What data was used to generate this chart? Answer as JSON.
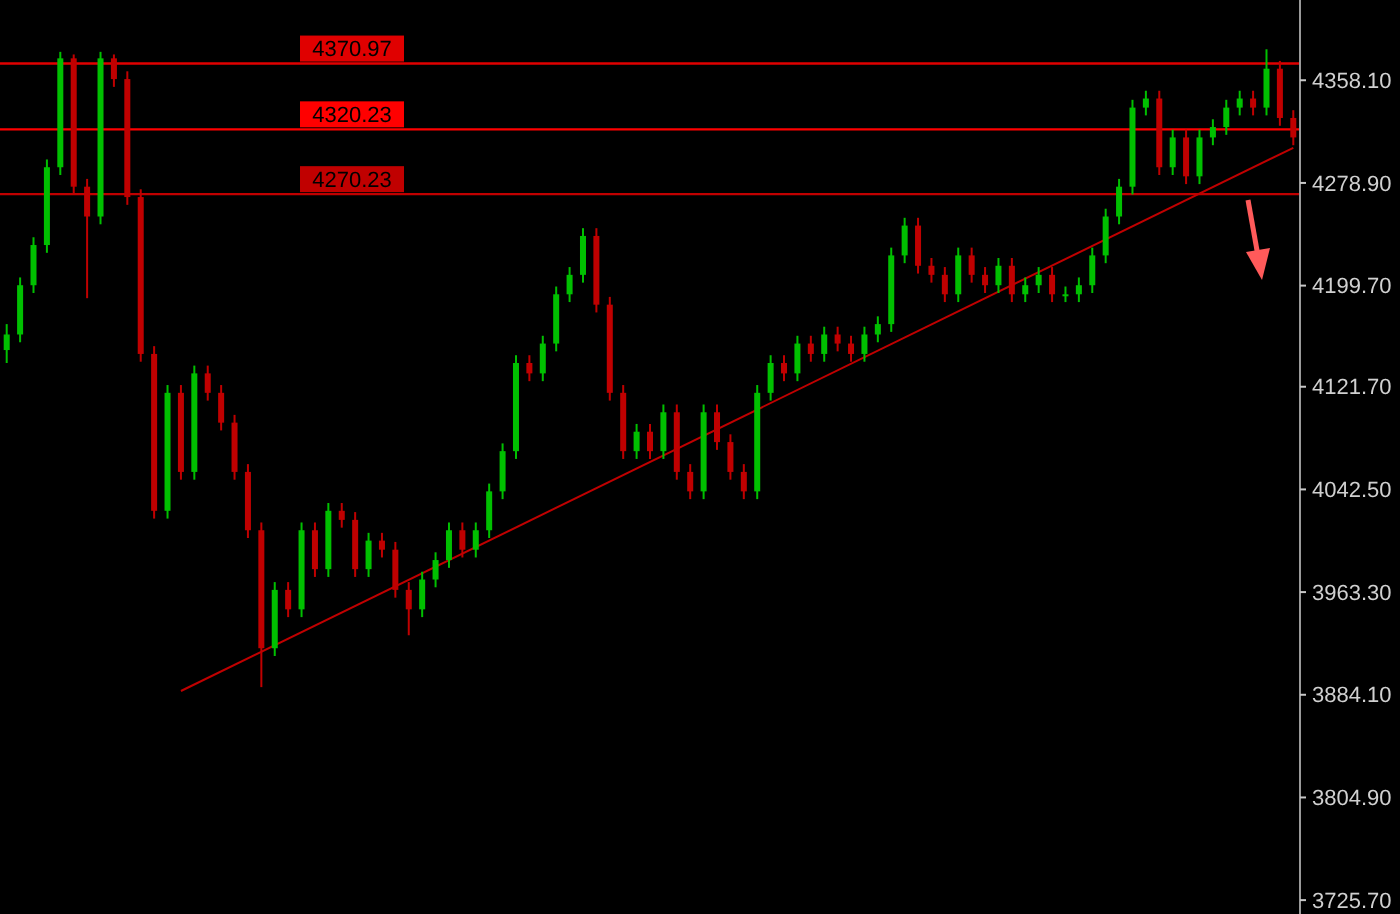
{
  "chart_data": {
    "type": "candlestick",
    "categories": [
      null,
      null,
      null,
      null,
      null,
      null,
      null,
      null,
      null,
      null,
      null,
      null,
      null,
      null,
      null,
      null,
      null,
      null,
      null,
      null,
      null,
      null,
      null,
      null,
      null,
      null,
      null,
      null,
      null,
      null,
      null,
      null,
      null,
      null,
      null,
      null,
      null,
      null,
      null,
      null,
      null,
      null,
      null,
      null,
      null,
      null,
      null,
      null,
      null,
      null,
      null,
      null,
      null,
      null,
      null,
      null,
      null,
      null,
      null,
      null,
      null,
      null,
      null,
      null,
      null,
      null,
      null,
      null,
      null,
      null,
      null,
      null,
      null,
      null,
      null,
      null,
      null,
      null,
      null,
      null,
      null,
      null,
      null,
      null,
      null,
      null,
      null,
      null,
      null,
      null,
      null,
      null,
      null,
      null,
      null,
      null,
      null
    ],
    "ohlc": [
      [
        4150,
        4170,
        4140,
        4162
      ],
      [
        4162,
        4206,
        4156,
        4200
      ],
      [
        4200,
        4237,
        4194,
        4231
      ],
      [
        4231,
        4297,
        4225,
        4291
      ],
      [
        4291,
        4380,
        4285,
        4375
      ],
      [
        4375,
        4378,
        4270,
        4276
      ],
      [
        4276,
        4282,
        4190,
        4253
      ],
      [
        4253,
        4380,
        4247,
        4375
      ],
      [
        4375,
        4378,
        4353,
        4359
      ],
      [
        4359,
        4365,
        4262,
        4268
      ],
      [
        4268,
        4274,
        4141,
        4147
      ],
      [
        4147,
        4153,
        4020,
        4026
      ],
      [
        4026,
        4123,
        4020,
        4117
      ],
      [
        4117,
        4123,
        4050,
        4056
      ],
      [
        4056,
        4138,
        4050,
        4132
      ],
      [
        4132,
        4138,
        4111,
        4117
      ],
      [
        4117,
        4123,
        4088,
        4094
      ],
      [
        4094,
        4100,
        4050,
        4056
      ],
      [
        4056,
        4062,
        4005,
        4011
      ],
      [
        4011,
        4017,
        3890,
        3920
      ],
      [
        3920,
        3971,
        3914,
        3965
      ],
      [
        3965,
        3971,
        3944,
        3950
      ],
      [
        3950,
        4017,
        3944,
        4011
      ],
      [
        4011,
        4017,
        3975,
        3981
      ],
      [
        3981,
        4032,
        3975,
        4026
      ],
      [
        4026,
        4032,
        4013,
        4019
      ],
      [
        4019,
        4025,
        3975,
        3981
      ],
      [
        3981,
        4009,
        3975,
        4003
      ],
      [
        4003,
        4009,
        3990,
        3996
      ],
      [
        3996,
        4002,
        3959,
        3965
      ],
      [
        3965,
        3971,
        3930,
        3950
      ],
      [
        3950,
        3979,
        3944,
        3973
      ],
      [
        3973,
        3994,
        3967,
        3988
      ],
      [
        3988,
        4017,
        3982,
        4011
      ],
      [
        4011,
        4017,
        3990,
        3996
      ],
      [
        3996,
        4017,
        3990,
        4011
      ],
      [
        4011,
        4047,
        4005,
        4041
      ],
      [
        4041,
        4078,
        4035,
        4072
      ],
      [
        4072,
        4146,
        4066,
        4140
      ],
      [
        4140,
        4146,
        4126,
        4132
      ],
      [
        4132,
        4161,
        4126,
        4155
      ],
      [
        4155,
        4199,
        4149,
        4193
      ],
      [
        4193,
        4214,
        4187,
        4208
      ],
      [
        4208,
        4244,
        4202,
        4238
      ],
      [
        4238,
        4244,
        4179,
        4185
      ],
      [
        4185,
        4191,
        4111,
        4117
      ],
      [
        4117,
        4123,
        4066,
        4072
      ],
      [
        4072,
        4093,
        4066,
        4087
      ],
      [
        4087,
        4093,
        4066,
        4072
      ],
      [
        4072,
        4108,
        4066,
        4102
      ],
      [
        4102,
        4108,
        4050,
        4056
      ],
      [
        4056,
        4062,
        4035,
        4041
      ],
      [
        4041,
        4108,
        4035,
        4102
      ],
      [
        4102,
        4108,
        4073,
        4079
      ],
      [
        4079,
        4085,
        4050,
        4056
      ],
      [
        4056,
        4062,
        4035,
        4041
      ],
      [
        4041,
        4123,
        4035,
        4117
      ],
      [
        4117,
        4146,
        4111,
        4140
      ],
      [
        4140,
        4146,
        4126,
        4132
      ],
      [
        4132,
        4161,
        4126,
        4155
      ],
      [
        4155,
        4161,
        4141,
        4147
      ],
      [
        4147,
        4168,
        4141,
        4162
      ],
      [
        4162,
        4168,
        4149,
        4155
      ],
      [
        4155,
        4161,
        4141,
        4147
      ],
      [
        4147,
        4168,
        4141,
        4162
      ],
      [
        4162,
        4176,
        4156,
        4170
      ],
      [
        4170,
        4229,
        4164,
        4223
      ],
      [
        4223,
        4252,
        4217,
        4246
      ],
      [
        4246,
        4252,
        4209,
        4215
      ],
      [
        4215,
        4221,
        4202,
        4208
      ],
      [
        4208,
        4214,
        4187,
        4193
      ],
      [
        4193,
        4229,
        4187,
        4223
      ],
      [
        4223,
        4229,
        4202,
        4208
      ],
      [
        4208,
        4214,
        4194,
        4200
      ],
      [
        4200,
        4221,
        4194,
        4215
      ],
      [
        4215,
        4221,
        4187,
        4193
      ],
      [
        4193,
        4206,
        4187,
        4200
      ],
      [
        4200,
        4214,
        4194,
        4208
      ],
      [
        4208,
        4214,
        4187,
        4193
      ],
      [
        4193,
        4199,
        4187,
        4193
      ],
      [
        4193,
        4206,
        4187,
        4200
      ],
      [
        4200,
        4229,
        4194,
        4223
      ],
      [
        4223,
        4259,
        4217,
        4253
      ],
      [
        4253,
        4282,
        4247,
        4276
      ],
      [
        4276,
        4343,
        4270,
        4337
      ],
      [
        4337,
        4350,
        4331,
        4344
      ],
      [
        4344,
        4350,
        4285,
        4291
      ],
      [
        4291,
        4320,
        4285,
        4314
      ],
      [
        4314,
        4320,
        4278,
        4284
      ],
      [
        4284,
        4320,
        4278,
        4314
      ],
      [
        4314,
        4328,
        4308,
        4322
      ],
      [
        4322,
        4343,
        4316,
        4337
      ],
      [
        4337,
        4350,
        4331,
        4344
      ],
      [
        4344,
        4350,
        4331,
        4337
      ],
      [
        4337,
        4382,
        4331,
        4367
      ],
      [
        4367,
        4373,
        4323,
        4329
      ],
      [
        4329,
        4335,
        4308,
        4314
      ]
    ],
    "colors": [
      "#00c000",
      "#00c000",
      "#00c000",
      "#00c000",
      "#00c000",
      "#c00000",
      "#c00000",
      "#00c000",
      "#c00000",
      "#c00000",
      "#c00000",
      "#c00000",
      "#00c000",
      "#c00000",
      "#00c000",
      "#c00000",
      "#c00000",
      "#c00000",
      "#c00000",
      "#c00000",
      "#00c000",
      "#c00000",
      "#00c000",
      "#c00000",
      "#00c000",
      "#c00000",
      "#c00000",
      "#00c000",
      "#c00000",
      "#c00000",
      "#c00000",
      "#00c000",
      "#00c000",
      "#00c000",
      "#c00000",
      "#00c000",
      "#00c000",
      "#00c000",
      "#00c000",
      "#c00000",
      "#00c000",
      "#00c000",
      "#00c000",
      "#00c000",
      "#c00000",
      "#c00000",
      "#c00000",
      "#00c000",
      "#c00000",
      "#00c000",
      "#c00000",
      "#c00000",
      "#00c000",
      "#c00000",
      "#c00000",
      "#c00000",
      "#00c000",
      "#00c000",
      "#c00000",
      "#00c000",
      "#c00000",
      "#00c000",
      "#c00000",
      "#c00000",
      "#00c000",
      "#00c000",
      "#00c000",
      "#00c000",
      "#c00000",
      "#c00000",
      "#c00000",
      "#00c000",
      "#c00000",
      "#c00000",
      "#00c000",
      "#c00000",
      "#00c000",
      "#00c000",
      "#c00000",
      "#00c000",
      "#00c000",
      "#00c000",
      "#00c000",
      "#00c000",
      "#00c000",
      "#00c000",
      "#c00000",
      "#00c000",
      "#c00000",
      "#00c000",
      "#00c000",
      "#00c000",
      "#00c000",
      "#c00000",
      "#00c000",
      "#c00000",
      "#c00000"
    ],
    "series": [
      {
        "type": "line",
        "color": "#c00000",
        "values": [
          null,
          null,
          null,
          null,
          null,
          null,
          null,
          null,
          null,
          null,
          null,
          null,
          null,
          3887,
          null,
          null,
          null,
          null,
          null,
          null,
          null,
          null,
          null,
          null,
          null,
          null,
          null,
          null,
          null,
          null,
          null,
          null,
          null,
          null,
          null,
          null,
          null,
          null,
          null,
          null,
          null,
          null,
          null,
          null,
          null,
          null,
          null,
          null,
          null,
          null,
          null,
          null,
          null,
          null,
          null,
          null,
          null,
          null,
          null,
          null,
          null,
          null,
          null,
          null,
          null,
          null,
          null,
          null,
          null,
          null,
          null,
          null,
          null,
          null,
          null,
          null,
          null,
          null,
          null,
          null,
          null,
          null,
          null,
          null,
          null,
          null,
          null,
          null,
          null,
          null,
          null,
          null,
          null,
          null,
          null,
          null,
          4306
        ]
      }
    ],
    "ylim": [
      3715,
      4420
    ],
    "yticks": [
      {
        "value": 4358.1,
        "label": "4358.10"
      },
      {
        "value": 4278.9,
        "label": "4278.90"
      },
      {
        "value": 4199.7,
        "label": "4199.70"
      },
      {
        "value": 4121.7,
        "label": "4121.70"
      },
      {
        "value": 4042.5,
        "label": "4042.50"
      },
      {
        "value": 3963.3,
        "label": "3963.30"
      },
      {
        "value": 3884.1,
        "label": "3884.10"
      },
      {
        "value": 3804.9,
        "label": "3804.90"
      },
      {
        "value": 3725.7,
        "label": "3725.70"
      }
    ],
    "tick_labels": "y",
    "ref_lines": [
      {
        "axis": "y",
        "value": 4370.97,
        "label": "4370.97",
        "color": "#e00000"
      },
      {
        "axis": "y",
        "value": 4320.23,
        "label": "4320.23",
        "color": "#ff0000"
      },
      {
        "axis": "y",
        "value": 4270.23,
        "label": "4270.23",
        "color": "#c00000"
      }
    ]
  }
}
